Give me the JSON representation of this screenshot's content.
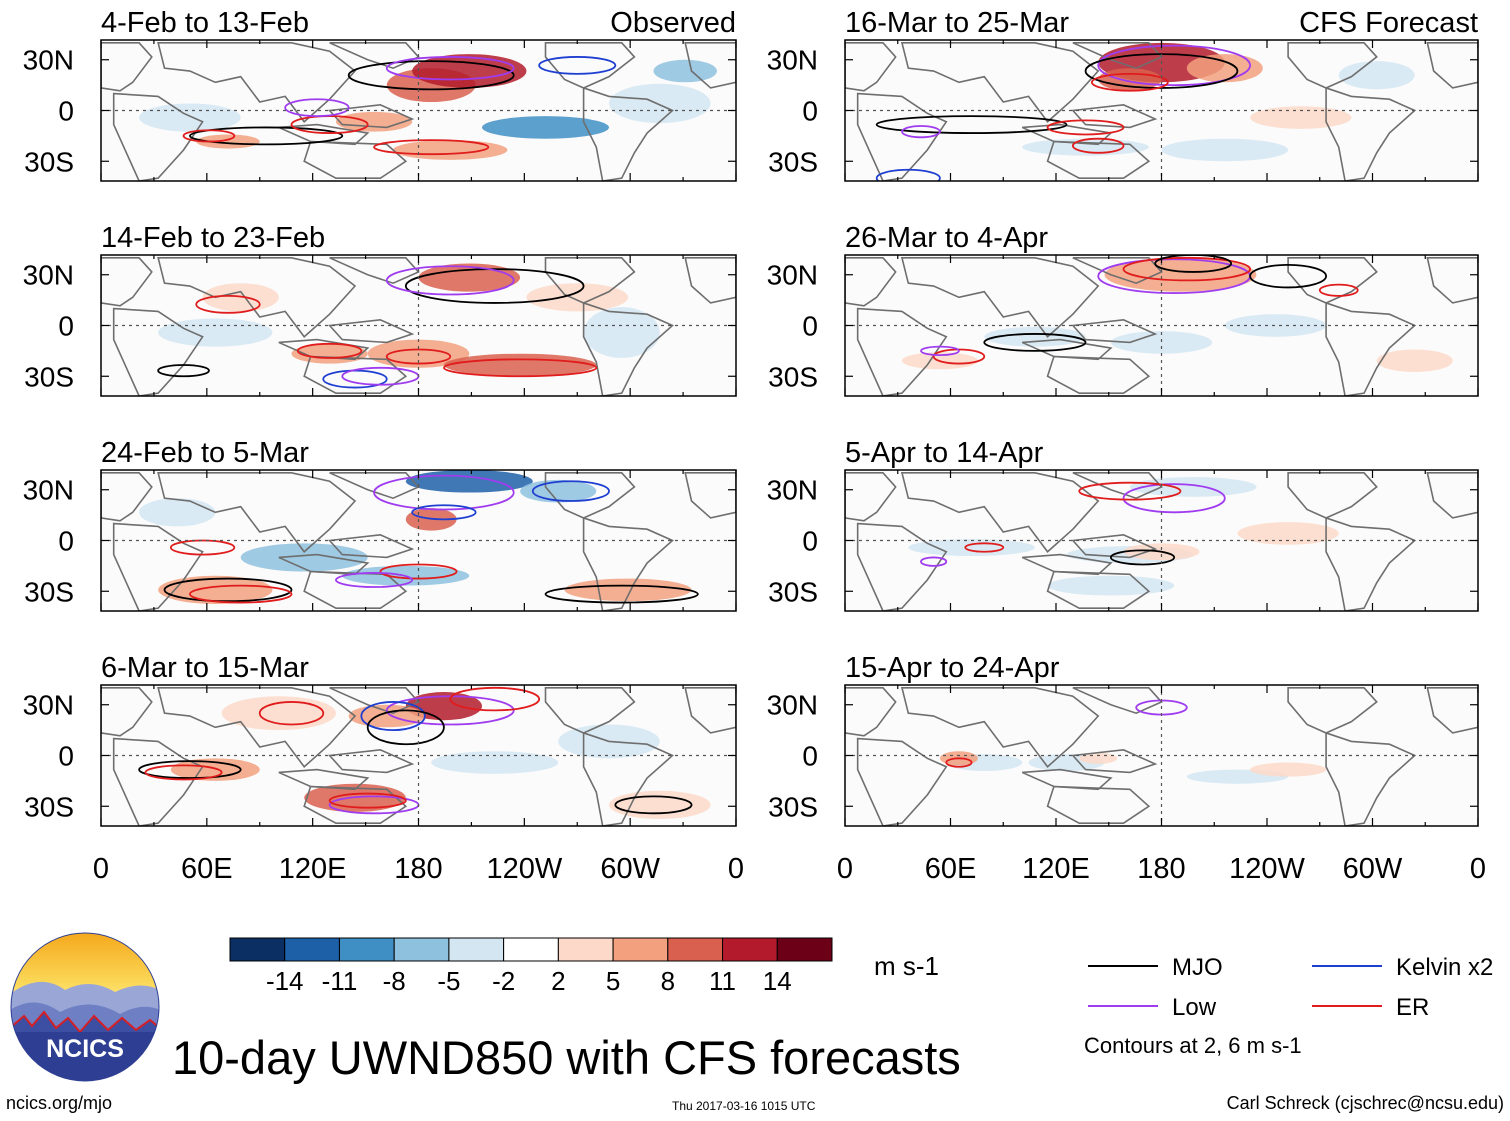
{
  "title": "10-day UWND850 with CFS forecasts",
  "footer": {
    "url": "ncics.org/mjo",
    "timestamp": "Thu 2017-03-16 1015 UTC",
    "credit": "Carl Schreck (cjschrec@ncsu.edu)"
  },
  "logo": {
    "text": "NCICS"
  },
  "columns": [
    {
      "label": "Observed"
    },
    {
      "label": "CFS Forecast"
    }
  ],
  "lat_ticks": [
    "30N",
    "0",
    "30S"
  ],
  "lon_ticks": [
    "0",
    "60E",
    "120E",
    "180",
    "120W",
    "60W",
    "0"
  ],
  "panels": [
    {
      "col": 0,
      "row": 0,
      "period": "4-Feb to 13-Feb"
    },
    {
      "col": 0,
      "row": 1,
      "period": "14-Feb to 23-Feb"
    },
    {
      "col": 0,
      "row": 2,
      "period": "24-Feb to 5-Mar"
    },
    {
      "col": 0,
      "row": 3,
      "period": "6-Mar to 15-Mar"
    },
    {
      "col": 1,
      "row": 0,
      "period": "16-Mar to 25-Mar"
    },
    {
      "col": 1,
      "row": 1,
      "period": "26-Mar to 4-Apr"
    },
    {
      "col": 1,
      "row": 2,
      "period": "5-Apr to 14-Apr"
    },
    {
      "col": 1,
      "row": 3,
      "period": "15-Apr to 24-Apr"
    }
  ],
  "colorbar": {
    "unit": "m s-1",
    "labels": [
      "-14",
      "-11",
      "-8",
      "-5",
      "-2",
      "2",
      "5",
      "8",
      "11",
      "14"
    ],
    "colors": [
      "#0b2f63",
      "#1d60a8",
      "#3f8fc4",
      "#8ec1de",
      "#d3e6f2",
      "#ffffff",
      "#fcd9c8",
      "#f2a07e",
      "#d9604e",
      "#b31b2c",
      "#6b0017"
    ]
  },
  "legend": {
    "items": [
      {
        "label": "MJO",
        "color": "#000000"
      },
      {
        "label": "Kelvin x2",
        "color": "#1f3fd1"
      },
      {
        "label": "Low",
        "color": "#a03cf0"
      },
      {
        "label": "ER",
        "color": "#e01c1c"
      }
    ],
    "note": "Contours at 2, 6 m s-1"
  },
  "colors": {
    "land": "#6e6e6e",
    "grid": "#555555",
    "background": "#ffffff"
  }
}
